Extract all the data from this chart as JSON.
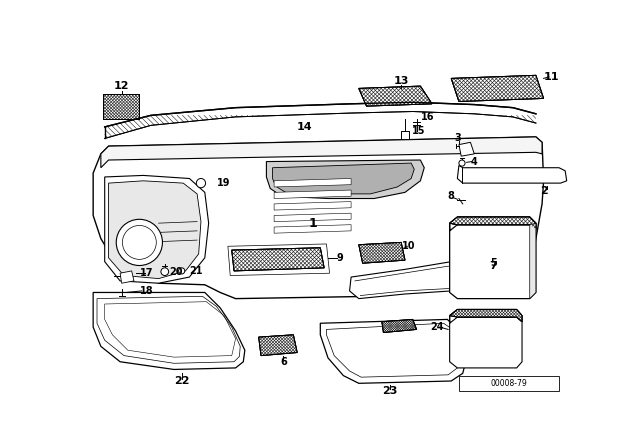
{
  "background_color": "#ffffff",
  "line_color": "#000000",
  "fig_width": 6.4,
  "fig_height": 4.48,
  "dpi": 100,
  "diagram_code": "00008-79"
}
